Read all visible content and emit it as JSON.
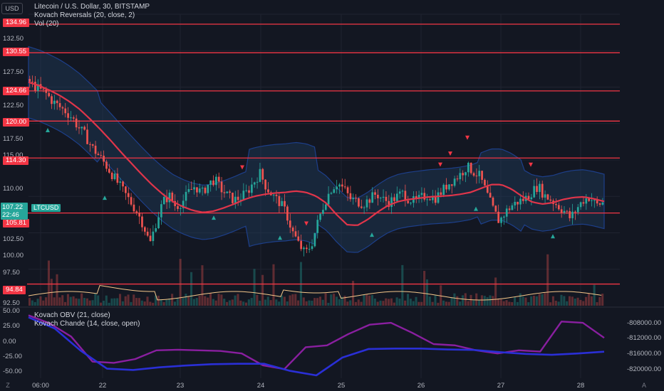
{
  "header": {
    "symbol_title": "Litecoin / U.S. Dollar, 30, BITSTAMP",
    "indicator1": "Kovach Reversals (20, close, 2)",
    "indicator2": "Vol (20)",
    "currency_button": "USD",
    "symbol_tag": "LTCUSD"
  },
  "oscillator_legend": {
    "obv": "Kovach OBV (21, close)",
    "chande": "Kovach Chande (14, close, open)"
  },
  "price_axis": {
    "ticks": [
      "132.50",
      "127.50",
      "122.50",
      "117.50",
      "115.00",
      "110.00",
      "102.50",
      "100.00",
      "97.50",
      "92.50"
    ],
    "levels": [
      "134.96",
      "130.55",
      "124.66",
      "120.00",
      "114.30",
      "105.81",
      "94.84"
    ],
    "current_price": "107.22",
    "countdown": "22:46"
  },
  "oscillator_axis": {
    "left_ticks": [
      "50.00",
      "25.00",
      "0.00",
      "-25.00",
      "-50.00"
    ],
    "right_ticks": [
      "-808000.00",
      "-812000.00",
      "-816000.00",
      "-820000.00"
    ]
  },
  "time_axis": {
    "labels": [
      "06:00",
      "22",
      "23",
      "24",
      "25",
      "26",
      "27",
      "28"
    ]
  },
  "corner_left": "Z",
  "corner_right": "A",
  "colors": {
    "background": "#131722",
    "up": "#26a69a",
    "down": "#ef5350",
    "level_line": "#f23645",
    "ma_line": "#e0354a",
    "band_fill": "#1e3b5a",
    "obv_line": "#2a2fd6",
    "chande_line": "#8a1fa0",
    "vol_avg": "#f5c78a"
  },
  "chart_data": {
    "type": "candlestick",
    "price_range": [
      91.5,
      136.5
    ],
    "horizontal_levels": [
      134.96,
      130.55,
      124.66,
      120.0,
      114.3,
      105.81,
      94.84
    ],
    "close_path": [
      126.5,
      125.5,
      124.8,
      124.2,
      123.0,
      122.2,
      121.5,
      120.5,
      119.0,
      117.8,
      116.0,
      114.8,
      113.5,
      112.0,
      110.5,
      109.0,
      107.5,
      106.0,
      104.0,
      101.0,
      104.5,
      107.5,
      108.5,
      106.8,
      107.5,
      109.0,
      110.0,
      108.8,
      110.2,
      111.0,
      109.5,
      108.5,
      107.8,
      108.2,
      109.0,
      110.5,
      112.0,
      109.8,
      108.5,
      107.5,
      106.0,
      103.0,
      101.0,
      99.5,
      101.0,
      104.5,
      107.5,
      109.5,
      110.5,
      109.5,
      108.0,
      107.6,
      107.2,
      108.0,
      108.8,
      107.9,
      107.5,
      108.2,
      108.9,
      108.0,
      107.5,
      108.2,
      108.6,
      108.0,
      109.0,
      110.2,
      111.0,
      111.8,
      113.0,
      112.2,
      111.5,
      109.0,
      106.5,
      104.5,
      106.0,
      107.0,
      107.6,
      108.0,
      109.0,
      110.0,
      108.5,
      107.9,
      107.0,
      106.2,
      105.0,
      106.5,
      107.8,
      108.3,
      107.0,
      107.4
    ],
    "ma_path": [
      126.0,
      125.5,
      124.8,
      124.0,
      123.0,
      121.8,
      120.3,
      118.7,
      117.0,
      115.2,
      113.5,
      111.8,
      110.2,
      108.8,
      107.6,
      106.8,
      106.2,
      105.9,
      106.1,
      106.6,
      107.2,
      107.9,
      108.4,
      108.7,
      108.9,
      109.0,
      109.2,
      109.0,
      108.4,
      107.3,
      105.5,
      104.0,
      103.9,
      104.8,
      106.0,
      107.0,
      107.6,
      107.9,
      108.1,
      108.3,
      108.4,
      108.5,
      108.7,
      109.0,
      109.6,
      110.2,
      110.2,
      109.5,
      108.4,
      107.5,
      107.2,
      107.4,
      107.9,
      108.2,
      108.3,
      108.0,
      107.6
    ],
    "bull_signals_x": [
      67,
      147,
      300,
      393,
      522,
      668,
      776
    ],
    "bear_signals_x": [
      340,
      430,
      618,
      632,
      656,
      745
    ],
    "oscillator": {
      "chande_range": [
        -50,
        50
      ],
      "obv_range": [
        -820000,
        -806000
      ],
      "obv": [
        -807000,
        -809500,
        -814500,
        -818500,
        -818800,
        -818200,
        -817800,
        -817500,
        -817400,
        -817400,
        -819000,
        -820000,
        -816000,
        -814100,
        -814000,
        -814000,
        -814200,
        -814300,
        -814800,
        -815200,
        -815400,
        -815100,
        -814700
      ],
      "chande": [
        46,
        33,
        12,
        -28,
        -30,
        -24,
        -10,
        -9,
        -10,
        -11,
        -15,
        -34,
        -40,
        -5,
        -2,
        16,
        31,
        34,
        18,
        0,
        -2,
        -10,
        -15,
        -10,
        -12,
        36,
        34,
        10
      ]
    }
  }
}
